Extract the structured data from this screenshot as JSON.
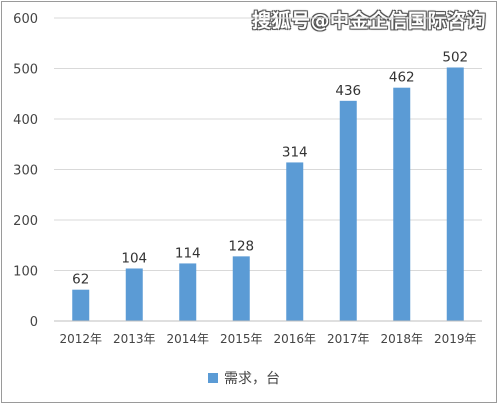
{
  "watermark": "搜狐号@中金企信国际咨询",
  "colors": {
    "bar": "#5b9bd5",
    "grid": "#d9d9d9",
    "axis": "#bfbfbf"
  },
  "chart_data": {
    "type": "bar",
    "categories": [
      "2012年",
      "2013年",
      "2014年",
      "2015年",
      "2016年",
      "2017年",
      "2018年",
      "2019年"
    ],
    "series": [
      {
        "name": "需求，台",
        "values": [
          62,
          104,
          114,
          128,
          314,
          436,
          462,
          502
        ]
      }
    ],
    "data_labels": [
      "62",
      "104",
      "114",
      "128",
      "314",
      "436",
      "462",
      "502"
    ],
    "y_ticks": [
      "0",
      "100",
      "200",
      "300",
      "400",
      "500",
      "600"
    ],
    "ylim": [
      0,
      600
    ],
    "grid": true,
    "legend_position": "bottom"
  }
}
